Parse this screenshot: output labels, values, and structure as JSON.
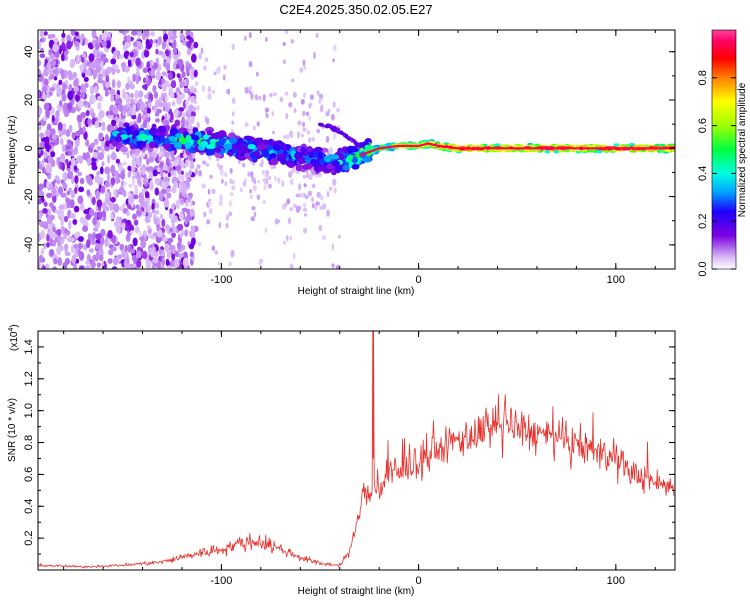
{
  "title": "C2E4.2025.350.02.05.E27",
  "chart_data": [
    {
      "type": "heatmap",
      "title": "C2E4.2025.350.02.05.E27",
      "xlabel": "Height of straight line (km)",
      "ylabel": "Frequency (Hz)",
      "xlim": [
        -193,
        130
      ],
      "ylim": [
        -50,
        49
      ],
      "xticks": [
        -100,
        0,
        100
      ],
      "yticks": [
        -40,
        -20,
        0,
        20,
        40
      ],
      "colorbar": {
        "label": "Normalized spectral amplitude",
        "range": [
          0,
          1
        ],
        "ticks": [
          "0.0",
          "0.2",
          "0.4",
          "0.6",
          "0.8"
        ],
        "colors": [
          "#ffffff",
          "#d8b8f8",
          "#7a00e0",
          "#2000ff",
          "#00a0ff",
          "#00ffe0",
          "#00ff40",
          "#a0ff00",
          "#ffff00",
          "#ff8000",
          "#ff0000",
          "#ff0060",
          "#ff40a0"
        ]
      },
      "ridge": {
        "description_free": true,
        "x": [
          -150,
          -130,
          -110,
          -90,
          -70,
          -55,
          -45,
          -38,
          -30,
          -20,
          -10,
          0,
          5,
          10,
          20,
          130
        ],
        "frequency": [
          5,
          4,
          3,
          0,
          -2,
          -4,
          -6,
          -5,
          -3,
          0,
          1,
          1,
          2,
          1,
          0,
          0
        ],
        "amplitude": [
          0.3,
          0.35,
          0.4,
          0.35,
          0.3,
          0.3,
          0.3,
          0.35,
          0.5,
          0.6,
          0.7,
          0.75,
          0.85,
          0.9,
          0.95,
          0.95
        ]
      },
      "branch": {
        "x": [
          -50,
          -45,
          -40,
          -35,
          -30
        ],
        "frequency": [
          10,
          9,
          7,
          4,
          1
        ]
      }
    },
    {
      "type": "line",
      "xlabel": "Height of straight line (km)",
      "ylabel": "SNR (10 * v/v)",
      "scale_label": "(x10",
      "scale_exponent": "4",
      "xlim": [
        -193,
        130
      ],
      "ylim": [
        0,
        1.5
      ],
      "xticks": [
        -100,
        0,
        100
      ],
      "yticks": [
        0.2,
        0.4,
        0.6,
        0.8,
        1.0,
        1.2,
        1.4
      ],
      "color": "#e8302c",
      "envelope": {
        "x": [
          -193,
          -170,
          -150,
          -130,
          -120,
          -110,
          -100,
          -90,
          -80,
          -70,
          -60,
          -50,
          -40,
          -35,
          -30,
          -28,
          -25,
          -22,
          -20,
          -15,
          -10,
          0,
          10,
          20,
          30,
          40,
          50,
          60,
          70,
          80,
          90,
          100,
          110,
          120,
          130
        ],
        "y": [
          0.03,
          0.02,
          0.03,
          0.05,
          0.08,
          0.11,
          0.13,
          0.17,
          0.18,
          0.13,
          0.08,
          0.04,
          0.03,
          0.12,
          0.35,
          0.5,
          0.45,
          0.55,
          0.48,
          0.62,
          0.6,
          0.68,
          0.75,
          0.82,
          0.85,
          0.88,
          0.9,
          0.85,
          0.82,
          0.78,
          0.75,
          0.68,
          0.6,
          0.55,
          0.52
        ]
      },
      "spike": {
        "x": -23,
        "y": 1.5
      }
    }
  ]
}
